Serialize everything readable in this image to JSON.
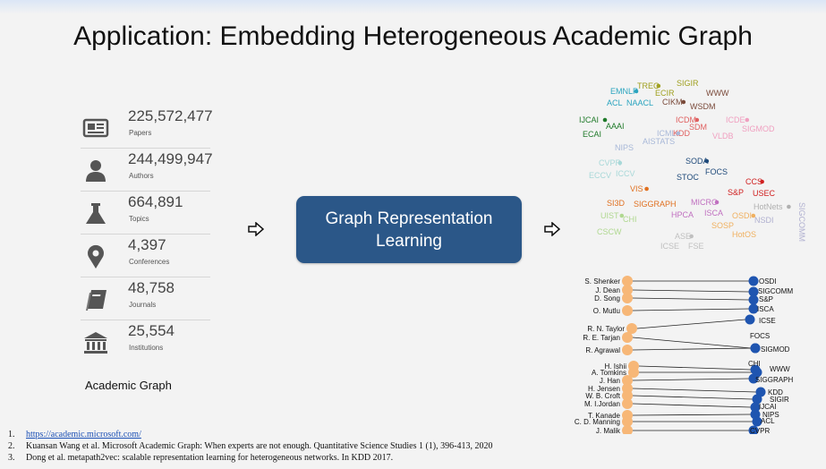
{
  "title": "Application: Embedding Heterogeneous Academic Graph",
  "stats": [
    {
      "icon": "newspaper-icon",
      "value": "225,572,477",
      "label": "Papers"
    },
    {
      "icon": "person-icon",
      "value": "244,499,947",
      "label": "Authors"
    },
    {
      "icon": "flask-icon",
      "value": "664,891",
      "label": "Topics"
    },
    {
      "icon": "map-pin-icon",
      "value": "4,397",
      "label": "Conferences"
    },
    {
      "icon": "book-icon",
      "value": "48,758",
      "label": "Journals"
    },
    {
      "icon": "institution-icon",
      "value": "25,554",
      "label": "Institutions"
    }
  ],
  "academic_graph_label": "Academic Graph",
  "grl_box": {
    "line1": "Graph Representation",
    "line2": "Learning"
  },
  "references": [
    {
      "num": "1.",
      "link": "https://academic.microsoft.com/",
      "text": ""
    },
    {
      "num": "2.",
      "link": "",
      "text": "Kuansan Wang et al. Microsoft Academic Graph: When experts are not enough. Quantitative Science Studies 1 (1), 396-413, 2020"
    },
    {
      "num": "3.",
      "link": "",
      "text": "Dong et al. metapath2vec: scalable representation learning for heterogeneous networks. In KDD 2017."
    }
  ],
  "embedding_labels": [
    {
      "text": "TREC",
      "color": "#a0a020"
    },
    {
      "text": "SIGIR",
      "color": "#a0a020"
    },
    {
      "text": "ECIR",
      "color": "#a0a020"
    },
    {
      "text": "EMNLP",
      "color": "#2aa4bf"
    },
    {
      "text": "ACL",
      "color": "#2aa4bf"
    },
    {
      "text": "NAACL",
      "color": "#2aa4bf"
    },
    {
      "text": "CIKM",
      "color": "#7a4a3a"
    },
    {
      "text": "WWW",
      "color": "#7a4a3a"
    },
    {
      "text": "WSDM",
      "color": "#7a4a3a"
    },
    {
      "text": "IJCAI",
      "color": "#1f7a2a"
    },
    {
      "text": "AAAI",
      "color": "#1f7a2a"
    },
    {
      "text": "ECAI",
      "color": "#1f7a2a"
    },
    {
      "text": "ICDM",
      "color": "#e06060"
    },
    {
      "text": "SDM",
      "color": "#e06060"
    },
    {
      "text": "KDD",
      "color": "#e06060"
    },
    {
      "text": "ICDE",
      "color": "#f0a0c0"
    },
    {
      "text": "SIGMOD",
      "color": "#f0a0c0"
    },
    {
      "text": "VLDB",
      "color": "#f0a0c0"
    },
    {
      "text": "ICML",
      "color": "#a8b8d8"
    },
    {
      "text": "AISTATS",
      "color": "#a8b8d8"
    },
    {
      "text": "NIPS",
      "color": "#a8b8d8"
    },
    {
      "text": "CVPR",
      "color": "#a8d8d8"
    },
    {
      "text": "ECCV",
      "color": "#a8d8d8"
    },
    {
      "text": "ICCV",
      "color": "#a8d8d8"
    },
    {
      "text": "SODA",
      "color": "#1f4a7a"
    },
    {
      "text": "FOCS",
      "color": "#1f4a7a"
    },
    {
      "text": "STOC",
      "color": "#1f4a7a"
    },
    {
      "text": "CCS",
      "color": "#d02020"
    },
    {
      "text": "S&P",
      "color": "#d02020"
    },
    {
      "text": "USEC",
      "color": "#d02020"
    },
    {
      "text": "VIS",
      "color": "#e07020"
    },
    {
      "text": "SI3D",
      "color": "#e07020"
    },
    {
      "text": "SIGGRAPH",
      "color": "#e07020"
    },
    {
      "text": "MICRO",
      "color": "#c070c0"
    },
    {
      "text": "HPCA",
      "color": "#c070c0"
    },
    {
      "text": "ISCA",
      "color": "#c070c0"
    },
    {
      "text": "HotNets",
      "color": "#b0b0b0"
    },
    {
      "text": "SIGCOMM",
      "color": "#b0b0d0"
    },
    {
      "text": "NSDI",
      "color": "#b0b0d0"
    },
    {
      "text": "OSDI",
      "color": "#f0b060"
    },
    {
      "text": "SOSP",
      "color": "#f0b060"
    },
    {
      "text": "HotOS",
      "color": "#f0b060"
    },
    {
      "text": "UIST",
      "color": "#b0d890"
    },
    {
      "text": "CHI",
      "color": "#b0d890"
    },
    {
      "text": "CSCW",
      "color": "#b0d890"
    },
    {
      "text": "ASE",
      "color": "#c0c0c0"
    },
    {
      "text": "ICSE",
      "color": "#c0c0c0"
    },
    {
      "text": "FSE",
      "color": "#c0c0c0"
    }
  ],
  "authors": [
    "S. Shenker",
    "J. Dean",
    "D. Song",
    "O. Mutlu",
    "R. N. Taylor",
    "R. E. Tarjan",
    "R. Agrawal",
    "H. Ishii",
    "A. Tomkins",
    "J. Han",
    "H. Jensen",
    "W. B. Croft",
    "M. I.Jordan",
    "T. Kanade",
    "C. D. Manning",
    "J. Malik"
  ],
  "venues": [
    "OSDI",
    "SIGCOMM",
    "S&P",
    "ISCA",
    "ICSE",
    "FOCS",
    "SIGMOD",
    "CHI",
    "WWW",
    "SIGGRAPH",
    "KDD",
    "SIGIR",
    "IJCAI",
    "NIPS",
    "ACL",
    "CVPR"
  ],
  "colors": {
    "box": "#2b5788",
    "author_node": "#f7b777",
    "venue_node": "#1f55b0",
    "link": "#1a4fb5"
  }
}
